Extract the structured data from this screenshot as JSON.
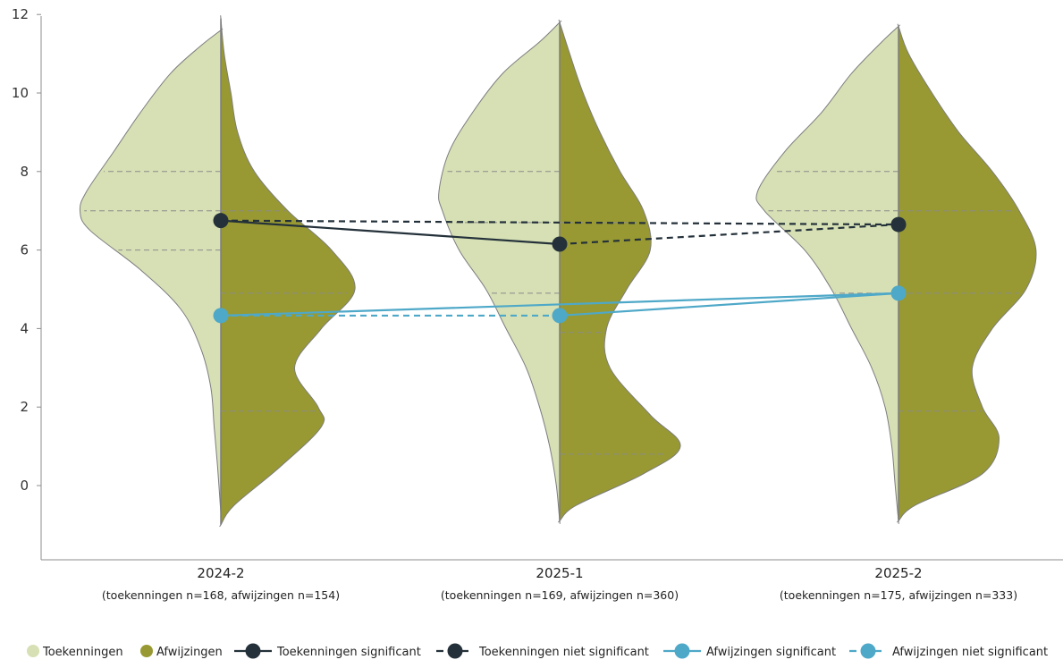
{
  "colors": {
    "toekenningen_fill": "#d6e0b4",
    "afwijzingen_fill": "#989932",
    "violin_stroke": "#7d7d7d",
    "toekenningen_line": "#24313a",
    "afwijzingen_line": "#4ea8c8",
    "quartile_line": "#8a8a8a"
  },
  "chart_data": {
    "type": "violin",
    "categories": [
      {
        "label": "2024-2",
        "sub": "(toekenningen n=168, afwijzingen n=154)"
      },
      {
        "label": "2025-1",
        "sub": "(toekenningen n=169, afwijzingen n=360)"
      },
      {
        "label": "2025-2",
        "sub": "(toekenningen n=175, afwijzingen n=333)"
      }
    ],
    "ylim": [
      -1,
      12
    ],
    "yticks": [
      0,
      2,
      4,
      6,
      8,
      10,
      12
    ],
    "series": [
      {
        "name": "Toekenningen",
        "side": "left",
        "violins": [
          {
            "min": -0.7,
            "max": 11.6,
            "quartiles": [
              6.0,
              7.0,
              8.0
            ],
            "profile": [
              [
                -0.7,
                0.0
              ],
              [
                0.5,
                0.1
              ],
              [
                1.5,
                0.2
              ],
              [
                2.5,
                0.3
              ],
              [
                3.5,
                0.6
              ],
              [
                4.5,
                1.2
              ],
              [
                5.5,
                2.4
              ],
              [
                6.5,
                3.9
              ],
              [
                7.0,
                4.2
              ],
              [
                7.5,
                4.0
              ],
              [
                8.5,
                3.2
              ],
              [
                9.5,
                2.4
              ],
              [
                10.5,
                1.5
              ],
              [
                11.2,
                0.6
              ],
              [
                11.6,
                0.0
              ]
            ]
          },
          {
            "min": -0.9,
            "max": 11.8,
            "quartiles": [
              4.9,
              6.7,
              8.0
            ],
            "profile": [
              [
                -0.9,
                0.0
              ],
              [
                0.0,
                0.1
              ],
              [
                1.0,
                0.3
              ],
              [
                2.0,
                0.6
              ],
              [
                3.0,
                1.0
              ],
              [
                4.0,
                1.6
              ],
              [
                5.0,
                2.2
              ],
              [
                6.0,
                3.0
              ],
              [
                7.0,
                3.5
              ],
              [
                7.5,
                3.6
              ],
              [
                8.5,
                3.3
              ],
              [
                9.5,
                2.6
              ],
              [
                10.5,
                1.7
              ],
              [
                11.3,
                0.6
              ],
              [
                11.8,
                0.0
              ]
            ]
          },
          {
            "min": -0.9,
            "max": 11.7,
            "quartiles": [
              4.9,
              7.0,
              8.0
            ],
            "profile": [
              [
                -0.9,
                0.0
              ],
              [
                0.0,
                0.1
              ],
              [
                1.0,
                0.2
              ],
              [
                2.0,
                0.4
              ],
              [
                3.0,
                0.8
              ],
              [
                4.0,
                1.4
              ],
              [
                5.0,
                2.0
              ],
              [
                6.0,
                2.8
              ],
              [
                7.0,
                4.0
              ],
              [
                7.5,
                4.2
              ],
              [
                8.5,
                3.4
              ],
              [
                9.5,
                2.3
              ],
              [
                10.5,
                1.4
              ],
              [
                11.3,
                0.5
              ],
              [
                11.7,
                0.0
              ]
            ]
          }
        ]
      },
      {
        "name": "Afwijzingen",
        "side": "right",
        "violins": [
          {
            "min": -1.0,
            "max": 11.9,
            "quartiles": [
              1.9,
              4.9,
              7.0
            ],
            "profile": [
              [
                -1.0,
                0.0
              ],
              [
                -0.5,
                0.4
              ],
              [
                0.5,
                1.8
              ],
              [
                1.5,
                3.0
              ],
              [
                2.0,
                2.9
              ],
              [
                3.0,
                2.2
              ],
              [
                4.0,
                3.0
              ],
              [
                5.0,
                4.0
              ],
              [
                6.0,
                3.3
              ],
              [
                7.0,
                2.0
              ],
              [
                8.0,
                1.0
              ],
              [
                9.0,
                0.5
              ],
              [
                10.0,
                0.3
              ],
              [
                11.0,
                0.1
              ],
              [
                11.9,
                0.0
              ]
            ]
          },
          {
            "min": -0.9,
            "max": 11.8,
            "quartiles": [
              0.8,
              3.9,
              6.7
            ],
            "profile": [
              [
                -0.9,
                0.0
              ],
              [
                -0.5,
                0.5
              ],
              [
                0.3,
                2.5
              ],
              [
                1.0,
                3.6
              ],
              [
                1.8,
                2.7
              ],
              [
                3.0,
                1.5
              ],
              [
                4.0,
                1.4
              ],
              [
                5.0,
                2.0
              ],
              [
                6.0,
                2.7
              ],
              [
                7.0,
                2.5
              ],
              [
                8.0,
                1.8
              ],
              [
                9.0,
                1.2
              ],
              [
                10.0,
                0.7
              ],
              [
                11.0,
                0.3
              ],
              [
                11.8,
                0.0
              ]
            ]
          },
          {
            "min": -0.9,
            "max": 11.7,
            "quartiles": [
              1.9,
              4.9,
              7.0
            ],
            "profile": [
              [
                -0.9,
                0.0
              ],
              [
                -0.5,
                0.5
              ],
              [
                0.3,
                2.5
              ],
              [
                1.2,
                3.0
              ],
              [
                2.0,
                2.5
              ],
              [
                3.0,
                2.2
              ],
              [
                4.0,
                2.8
              ],
              [
                5.0,
                3.8
              ],
              [
                6.0,
                4.1
              ],
              [
                7.0,
                3.6
              ],
              [
                8.0,
                2.8
              ],
              [
                9.0,
                1.8
              ],
              [
                10.0,
                1.0
              ],
              [
                11.0,
                0.3
              ],
              [
                11.7,
                0.0
              ]
            ]
          }
        ]
      }
    ],
    "mean_lines": [
      {
        "name": "Toekenningen significant",
        "color_key": "toekenningen_line",
        "dashed": false,
        "from": [
          0,
          6.75
        ],
        "to": [
          1,
          6.15
        ]
      },
      {
        "name": "Toekenningen niet significant",
        "color_key": "toekenningen_line",
        "dashed": true,
        "from": [
          0,
          6.75
        ],
        "to": [
          2,
          6.65
        ]
      },
      {
        "name": "Toekenningen niet significant",
        "color_key": "toekenningen_line",
        "dashed": true,
        "from": [
          1,
          6.15
        ],
        "to": [
          2,
          6.65
        ]
      },
      {
        "name": "Afwijzingen significant",
        "color_key": "afwijzingen_line",
        "dashed": false,
        "from": [
          0,
          4.33
        ],
        "to": [
          2,
          4.9
        ]
      },
      {
        "name": "Afwijzingen significant",
        "color_key": "afwijzingen_line",
        "dashed": false,
        "from": [
          1,
          4.33
        ],
        "to": [
          2,
          4.9
        ]
      },
      {
        "name": "Afwijzingen niet significant",
        "color_key": "afwijzingen_line",
        "dashed": true,
        "from": [
          0,
          4.33
        ],
        "to": [
          1,
          4.33
        ]
      }
    ],
    "mean_points": [
      {
        "series": "Toekenningen",
        "color_key": "toekenningen_line",
        "values": [
          6.75,
          6.15,
          6.65
        ]
      },
      {
        "series": "Afwijzingen",
        "color_key": "afwijzingen_line",
        "values": [
          4.33,
          4.33,
          4.9
        ]
      }
    ],
    "legend": {
      "placement": "bottom",
      "items": [
        {
          "label": "Toekenningen",
          "kind": "dot",
          "color_key": "toekenningen_fill"
        },
        {
          "label": "Afwijzingen",
          "kind": "dot",
          "color_key": "afwijzingen_fill"
        },
        {
          "label": "Toekenningen significant",
          "kind": "line-dot",
          "color_key": "toekenningen_line",
          "dashed": false
        },
        {
          "label": "Toekenningen niet significant",
          "kind": "line-dot",
          "color_key": "toekenningen_line",
          "dashed": true
        },
        {
          "label": "Afwijzingen significant",
          "kind": "line-dot",
          "color_key": "afwijzingen_line",
          "dashed": false
        },
        {
          "label": "Afwijzingen niet significant",
          "kind": "line-dot",
          "color_key": "afwijzingen_line",
          "dashed": true
        }
      ]
    }
  }
}
